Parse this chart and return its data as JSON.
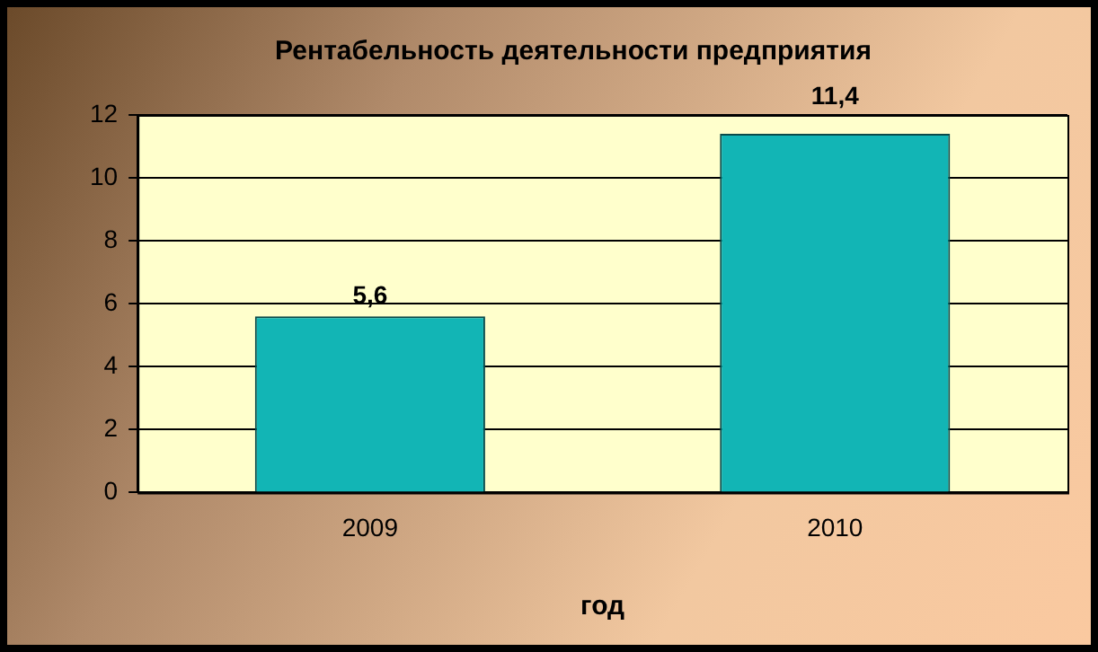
{
  "chart_data": {
    "type": "bar",
    "title": "Рентабельность деятельности предприятия",
    "xlabel": "год",
    "categories": [
      "2009",
      "2010"
    ],
    "series": [
      {
        "color": "#12b5b5",
        "values": [
          5.6,
          11.4
        ],
        "value_labels": [
          "5,6",
          "11,4"
        ]
      }
    ],
    "ylim": [
      0,
      12
    ],
    "yticks": [
      0,
      2,
      4,
      6,
      8,
      10,
      12
    ],
    "grid": "y",
    "legend": false
  }
}
